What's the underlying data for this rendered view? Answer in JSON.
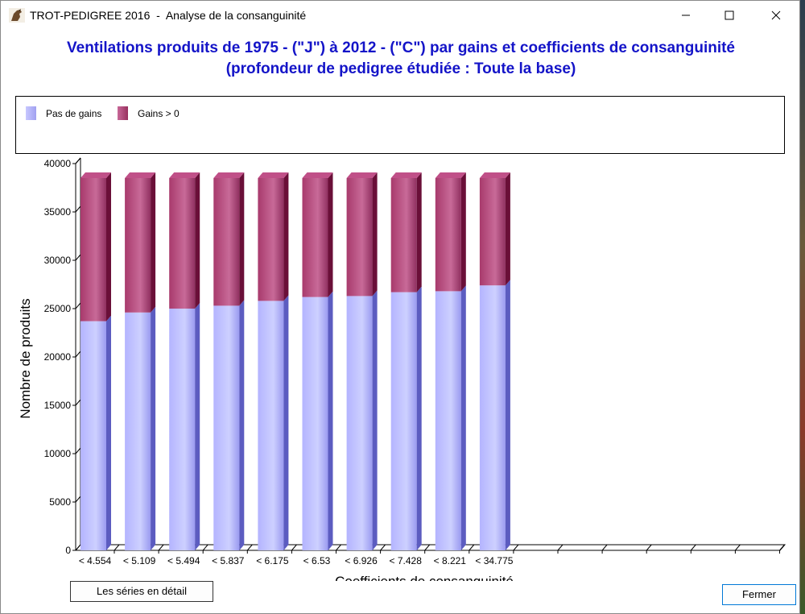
{
  "window": {
    "title": "TROT-PEDIGREE 2016  -  Analyse de la consanguinité"
  },
  "buttons": {
    "series_detail": "Les séries en détail",
    "close": "Fermer"
  },
  "colors": {
    "title": "#1414c8",
    "series_no_gains": "#b4b4ff",
    "series_gains": "#a83a6c"
  },
  "chart_data": {
    "type": "bar",
    "stacked": true,
    "title": "Ventilations produits  de 1975 - (\"J\") à 2012 - (\"C\") par gains et coefficients de consanguinité",
    "subtitle": "(profondeur de pedigree étudiée : Toute la base)",
    "xlabel": "Coefficients de consanguinité",
    "ylabel": "Nombre de produits",
    "ylim": [
      0,
      40000
    ],
    "yticks": [
      0,
      5000,
      10000,
      15000,
      20000,
      25000,
      30000,
      35000,
      40000
    ],
    "categories": [
      "< 4.554",
      "< 5.109",
      "< 5.494",
      "< 5.837",
      "< 6.175",
      "< 6.53",
      "< 6.926",
      "< 7.428",
      "< 8.221",
      "< 34.775",
      "",
      "",
      "",
      "",
      "",
      ""
    ],
    "series": [
      {
        "name": "Pas de gains",
        "values": [
          23700,
          24600,
          25000,
          25300,
          25800,
          26200,
          26300,
          26700,
          26800,
          27400,
          0,
          0,
          0,
          0,
          0,
          0
        ]
      },
      {
        "name": "Gains > 0",
        "values": [
          14800,
          13900,
          13500,
          13200,
          12700,
          12300,
          12200,
          11800,
          11700,
          11100,
          0,
          0,
          0,
          0,
          0,
          0
        ]
      }
    ],
    "legend": "top-left",
    "grid": false
  }
}
